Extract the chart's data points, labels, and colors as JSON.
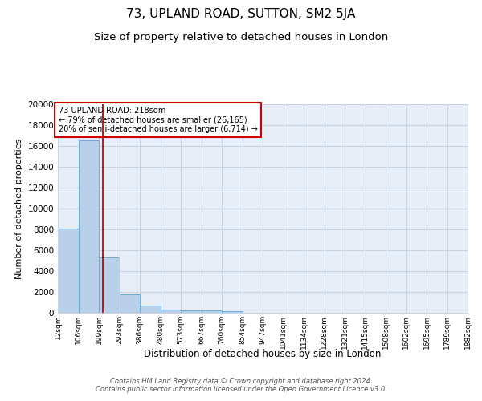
{
  "title": "73, UPLAND ROAD, SUTTON, SM2 5JA",
  "subtitle": "Size of property relative to detached houses in London",
  "xlabel": "Distribution of detached houses by size in London",
  "ylabel": "Number of detached properties",
  "bin_edges": [
    12,
    106,
    199,
    293,
    386,
    480,
    573,
    667,
    760,
    854,
    947,
    1041,
    1134,
    1228,
    1321,
    1415,
    1508,
    1602,
    1695,
    1789,
    1882
  ],
  "bar_heights": [
    8100,
    16500,
    5300,
    1750,
    700,
    300,
    200,
    200,
    150,
    0,
    0,
    0,
    0,
    0,
    0,
    0,
    0,
    0,
    0,
    0
  ],
  "bar_color": "#b8d0ea",
  "bar_edge_color": "#6baed6",
  "bg_color": "#e8eef7",
  "grid_color": "#c8d4e4",
  "vline_x": 218,
  "vline_color": "#cc0000",
  "annotation_text": "73 UPLAND ROAD: 218sqm\n← 79% of detached houses are smaller (26,165)\n20% of semi-detached houses are larger (6,714) →",
  "annotation_box_color": "#cc0000",
  "ylim": [
    0,
    20000
  ],
  "yticks": [
    0,
    2000,
    4000,
    6000,
    8000,
    10000,
    12000,
    14000,
    16000,
    18000,
    20000
  ],
  "footnote": "Contains HM Land Registry data © Crown copyright and database right 2024.\nContains public sector information licensed under the Open Government Licence v3.0.",
  "title_fontsize": 11,
  "subtitle_fontsize": 9.5
}
